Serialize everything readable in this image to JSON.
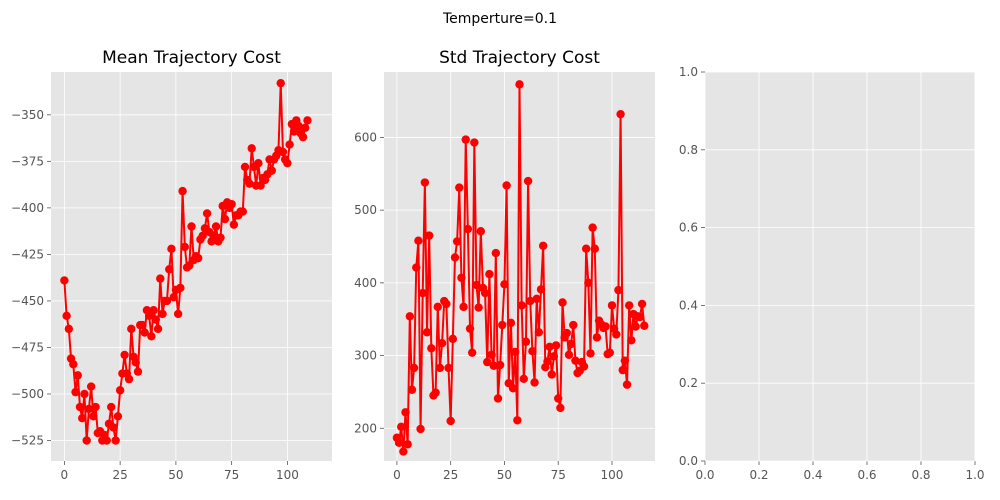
{
  "suptitle": "Temperture=0.1",
  "colors": {
    "series": "#ff0000",
    "axes_bg": "#e5e5e5",
    "grid": "#ffffff",
    "tick_text": "#555555"
  },
  "chart_data": [
    {
      "type": "line",
      "title": "Mean Trajectory Cost",
      "xlim": [
        -6,
        120
      ],
      "ylim": [
        -536,
        -327
      ],
      "xticks": [
        0,
        25,
        50,
        75,
        100
      ],
      "yticks": [
        -525,
        -500,
        -475,
        -450,
        -425,
        -400,
        -375,
        -350
      ],
      "grid": true,
      "marker": "circle",
      "y": [
        -439,
        -458,
        -465,
        -481,
        -484,
        -499,
        -490,
        -507,
        -513,
        -500,
        -525,
        -508,
        -496,
        -512,
        -507,
        -521,
        -520,
        -525,
        -522,
        -525,
        -516,
        -507,
        -518,
        -525,
        -512,
        -498,
        -489,
        -479,
        -489,
        -492,
        -465,
        -480,
        -483,
        -488,
        -463,
        -463,
        -467,
        -455,
        -458,
        -469,
        -455,
        -460,
        -465,
        -438,
        -457,
        -450,
        -450,
        -433,
        -422,
        -448,
        -444,
        -457,
        -443,
        -391,
        -421,
        -432,
        -431,
        -410,
        -428,
        -426,
        -427,
        -417,
        -415,
        -411,
        -403,
        -413,
        -418,
        -415,
        -410,
        -418,
        -416,
        -399,
        -406,
        -397,
        -400,
        -398,
        -409,
        -404,
        -404,
        -402,
        -402,
        -378,
        -385,
        -387,
        -368,
        -378,
        -388,
        -376,
        -388,
        -384,
        -385,
        -382,
        -374,
        -380,
        -374,
        -372,
        -369,
        -333,
        -370,
        -374,
        -376,
        -366,
        -355,
        -359,
        -353,
        -356,
        -360,
        -362,
        -357,
        -353
      ]
    },
    {
      "type": "line",
      "title": "Std Trajectory Cost",
      "xlim": [
        -6,
        120
      ],
      "ylim": [
        155,
        690
      ],
      "xticks": [
        0,
        25,
        50,
        75,
        100
      ],
      "yticks": [
        200,
        300,
        400,
        500,
        600
      ],
      "grid": true,
      "marker": "circle",
      "y": [
        187,
        180,
        202,
        168,
        222,
        178,
        354,
        253,
        283,
        421,
        458,
        199,
        386,
        538,
        332,
        465,
        310,
        245,
        249,
        367,
        283,
        317,
        375,
        371,
        283,
        210,
        323,
        435,
        457,
        531,
        407,
        367,
        597,
        474,
        337,
        304,
        593,
        397,
        366,
        471,
        393,
        386,
        291,
        412,
        301,
        286,
        441,
        241,
        287,
        342,
        398,
        534,
        262,
        345,
        255,
        305,
        211,
        673,
        369,
        268,
        319,
        540,
        375,
        306,
        263,
        378,
        332,
        391,
        451,
        284,
        292,
        312,
        274,
        299,
        314,
        241,
        228,
        373,
        325,
        331,
        301,
        316,
        342,
        293,
        276,
        279,
        291,
        285,
        447,
        400,
        303,
        476,
        447,
        325,
        348,
        343,
        338,
        340,
        302,
        304,
        369,
        337,
        329,
        390,
        632,
        280,
        293,
        260,
        369,
        321,
        357,
        340,
        354,
        353,
        371,
        341
      ]
    },
    {
      "type": "line",
      "title": "",
      "xlim": [
        0,
        1
      ],
      "ylim": [
        0,
        1
      ],
      "xticks": [
        0.0,
        0.2,
        0.4,
        0.6,
        0.8,
        1.0
      ],
      "yticks": [
        0.0,
        0.2,
        0.4,
        0.6,
        0.8,
        1.0
      ],
      "xtick_labels": [
        "0.0",
        "0.2",
        "0.4",
        "0.6",
        "0.8",
        "1.0"
      ],
      "ytick_labels": [
        "0.0",
        "0.2",
        "0.4",
        "0.6",
        "0.8",
        "1.0"
      ],
      "grid": true,
      "y": []
    }
  ]
}
